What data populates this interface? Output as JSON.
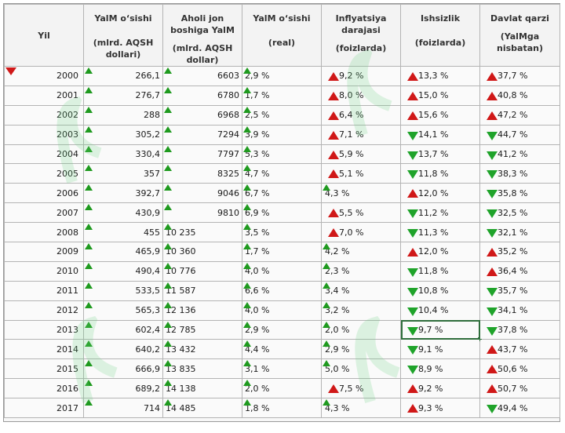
{
  "headers": {
    "year": "Yil",
    "gdp": {
      "l1": "YalM o‘sishi",
      "l2": "(mlrd. AQSH dollari)"
    },
    "percap": {
      "l1": "Aholi jon boshiga YalM",
      "l2": "(mlrd. AQSH dollar)"
    },
    "real": {
      "l1": "YalM o‘sishi",
      "l2": "(real)"
    },
    "inflation": {
      "l1": "Inflyatsiya darajasi",
      "l2": "(foizlarda)"
    },
    "unemp": {
      "l1": "Ishsizlik",
      "l2": "(foizlarda)"
    },
    "debt": {
      "l1": "Davlat qarzi",
      "l2": "(YalMga nisbatan)"
    }
  },
  "colors": {
    "up_green": "#1f9a1f",
    "up_red": "#d01818",
    "down_green": "#1fa32a"
  },
  "rows": [
    {
      "year": "2000",
      "gdp": "266,1",
      "percap": "6603",
      "real": "2,9 %",
      "inflation": "9,2 %",
      "inf_icon": "red-up",
      "unemp": "13,3 %",
      "un_icon": "red-up",
      "debt": "37,7 %",
      "debt_icon": "red-up",
      "corner_marker": true
    },
    {
      "year": "2001",
      "gdp": "276,7",
      "percap": "6780",
      "real": "1,7 %",
      "inflation": "8,0 %",
      "inf_icon": "red-up",
      "unemp": "15,0 %",
      "un_icon": "red-up",
      "debt": "40,8 %",
      "debt_icon": "red-up"
    },
    {
      "year": "2002",
      "gdp": "288",
      "percap": "6968",
      "real": "2,5 %",
      "inflation": "6,4 %",
      "inf_icon": "red-up",
      "unemp": "15,6 %",
      "un_icon": "red-up",
      "debt": "47,2 %",
      "debt_icon": "red-up"
    },
    {
      "year": "2003",
      "gdp": "305,2",
      "percap": "7294",
      "real": "3,9 %",
      "inflation": "7,1 %",
      "inf_icon": "red-up",
      "unemp": "14,1 %",
      "un_icon": "green-down",
      "debt": "44,7 %",
      "debt_icon": "green-down"
    },
    {
      "year": "2004",
      "gdp": "330,4",
      "percap": "7797",
      "real": "5,3 %",
      "inflation": "5,9 %",
      "inf_icon": "red-up",
      "unemp": "13,7 %",
      "un_icon": "green-down",
      "debt": "41,2 %",
      "debt_icon": "green-down"
    },
    {
      "year": "2005",
      "gdp": "357",
      "percap": "8325",
      "real": "4,7 %",
      "inflation": "5,1 %",
      "inf_icon": "red-up",
      "unemp": "11,8 %",
      "un_icon": "green-down",
      "debt": "38,3 %",
      "debt_icon": "green-down"
    },
    {
      "year": "2006",
      "gdp": "392,7",
      "percap": "9046",
      "real": "6,7 %",
      "inflation": "4,3 %",
      "inf_icon": "green-up",
      "unemp": "12,0 %",
      "un_icon": "red-up",
      "debt": "35,8 %",
      "debt_icon": "green-down"
    },
    {
      "year": "2007",
      "gdp": "430,9",
      "percap": "9810",
      "real": "6,9 %",
      "inflation": "5,5 %",
      "inf_icon": "red-up",
      "unemp": "11,2 %",
      "un_icon": "green-down",
      "debt": "32,5 %",
      "debt_icon": "green-down"
    },
    {
      "year": "2008",
      "gdp": "455",
      "percap": "10 235",
      "real": "3,5 %",
      "inflation": "7,0 %",
      "inf_icon": "red-up",
      "unemp": "11,3 %",
      "un_icon": "green-down",
      "debt": "32,1 %",
      "debt_icon": "green-down"
    },
    {
      "year": "2009",
      "gdp": "465,9",
      "percap": "10 360",
      "real": "1,7 %",
      "inflation": "4,2 %",
      "inf_icon": "green-up",
      "unemp": "12,0 %",
      "un_icon": "red-up",
      "debt": "35,2 %",
      "debt_icon": "red-up"
    },
    {
      "year": "2010",
      "gdp": "490,4",
      "percap": "10 776",
      "real": "4,0 %",
      "inflation": "2,3 %",
      "inf_icon": "green-up",
      "unemp": "11,8 %",
      "un_icon": "green-down",
      "debt": "36,4 %",
      "debt_icon": "red-up"
    },
    {
      "year": "2011",
      "gdp": "533,5",
      "percap": "11 587",
      "real": "6,6 %",
      "inflation": "3,4 %",
      "inf_icon": "green-up",
      "unemp": "10,8 %",
      "un_icon": "green-down",
      "debt": "35,7 %",
      "debt_icon": "green-down"
    },
    {
      "year": "2012",
      "gdp": "565,3",
      "percap": "12 136",
      "real": "4,0 %",
      "inflation": "3,2 %",
      "inf_icon": "green-up",
      "unemp": "10,4 %",
      "un_icon": "green-down",
      "debt": "34,1 %",
      "debt_icon": "green-down"
    },
    {
      "year": "2013",
      "gdp": "602,4",
      "percap": "12 785",
      "real": "2,9 %",
      "inflation": "2,0 %",
      "inf_icon": "green-up",
      "unemp": "9,7 %",
      "un_icon": "green-down",
      "debt": "37,8 %",
      "debt_icon": "green-down",
      "selected": true
    },
    {
      "year": "2014",
      "gdp": "640,2",
      "percap": "13 432",
      "real": "4,4 %",
      "inflation": "2,9 %",
      "inf_icon": "green-up",
      "unemp": "9,1 %",
      "un_icon": "green-down",
      "debt": "43,7 %",
      "debt_icon": "red-up"
    },
    {
      "year": "2015",
      "gdp": "666,9",
      "percap": "13 835",
      "real": "3,1 %",
      "inflation": "5,0 %",
      "inf_icon": "green-up",
      "unemp": "8,9 %",
      "un_icon": "green-down",
      "debt": "50,6 %",
      "debt_icon": "red-up"
    },
    {
      "year": "2016",
      "gdp": "689,2",
      "percap": "14 138",
      "real": "2,0 %",
      "inflation": "7,5 %",
      "inf_icon": "red-up",
      "unemp": "9,2 %",
      "un_icon": "red-up",
      "debt": "50,7 %",
      "debt_icon": "red-up"
    },
    {
      "year": "2017",
      "gdp": "714",
      "percap": "14 485",
      "real": "1,8 %",
      "inflation": "4,3 %",
      "inf_icon": "green-up",
      "unemp": "9,3 %",
      "un_icon": "red-up",
      "debt": "49,4 %",
      "debt_icon": "green-down"
    }
  ]
}
